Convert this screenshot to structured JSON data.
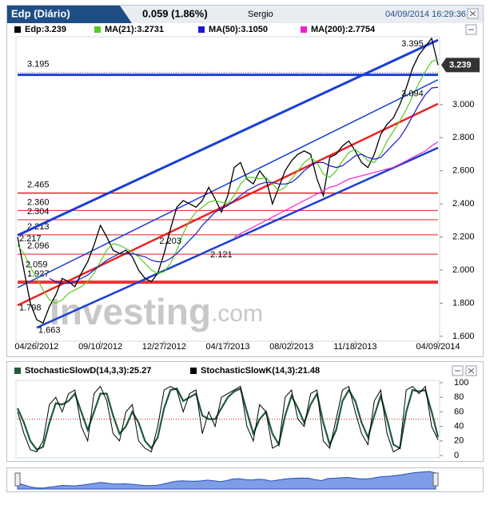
{
  "header": {
    "title": "Edp (Diário)",
    "change": "0.059 (1.86%)",
    "user": "Sergio",
    "datetime": "04/09/2014 16:29:36"
  },
  "watermark": {
    "brand": "Investing",
    "suffix": ".com"
  },
  "chart_data": [
    {
      "type": "line",
      "categories": [
        null,
        null,
        null,
        "04/26/2012",
        null,
        null,
        null,
        null,
        null,
        null,
        null,
        null,
        null,
        "09/10/2012",
        null,
        null,
        null,
        null,
        null,
        null,
        null,
        null,
        null,
        "12/27/2012",
        null,
        null,
        null,
        null,
        null,
        null,
        null,
        null,
        null,
        "04/17/2013",
        null,
        null,
        null,
        null,
        null,
        null,
        null,
        null,
        null,
        "08/02/2013",
        null,
        null,
        null,
        null,
        null,
        null,
        null,
        null,
        null,
        "11/18/2013",
        null,
        null,
        null,
        null,
        null,
        null,
        null,
        null,
        null,
        null,
        null,
        null,
        "04/09/2014"
      ],
      "series": [
        {
          "name": "Edp:3.239",
          "color": "#000000",
          "values": [
            2.2,
            2.0,
            1.8,
            1.7,
            1.68,
            1.78,
            1.85,
            1.95,
            1.93,
            1.9,
            1.98,
            2.05,
            2.15,
            2.27,
            2.2,
            2.12,
            2.1,
            2.12,
            2.08,
            2.0,
            1.95,
            1.93,
            1.98,
            2.1,
            2.25,
            2.38,
            2.42,
            2.4,
            2.38,
            2.42,
            2.5,
            2.43,
            2.35,
            2.45,
            2.62,
            2.65,
            2.55,
            2.52,
            2.6,
            2.55,
            2.4,
            2.5,
            2.6,
            2.66,
            2.7,
            2.72,
            2.7,
            2.55,
            2.45,
            2.68,
            2.7,
            2.75,
            2.78,
            2.72,
            2.65,
            2.62,
            2.7,
            2.82,
            2.88,
            2.92,
            3.0,
            3.1,
            3.22,
            3.3,
            3.35,
            3.4,
            3.239
          ]
        },
        {
          "name": "MA(21):3.2731",
          "color": "#55cc22",
          "values": [
            2.15,
            2.1,
            2.02,
            1.95,
            1.88,
            1.82,
            1.8,
            1.82,
            1.86,
            1.88,
            1.9,
            1.93,
            1.98,
            2.05,
            2.12,
            2.16,
            2.15,
            2.13,
            2.11,
            2.08,
            2.04,
            2.0,
            1.98,
            1.99,
            2.04,
            2.12,
            2.22,
            2.3,
            2.35,
            2.38,
            2.41,
            2.42,
            2.41,
            2.4,
            2.45,
            2.52,
            2.56,
            2.56,
            2.55,
            2.56,
            2.52,
            2.48,
            2.5,
            2.55,
            2.6,
            2.65,
            2.68,
            2.65,
            2.58,
            2.56,
            2.6,
            2.66,
            2.71,
            2.73,
            2.7,
            2.66,
            2.65,
            2.7,
            2.78,
            2.84,
            2.9,
            2.97,
            3.05,
            3.13,
            3.2,
            3.26,
            3.273
          ]
        },
        {
          "name": "MA(50):3.1050",
          "color": "#1a1acc",
          "values": [
            null,
            null,
            null,
            null,
            null,
            1.95,
            1.93,
            1.92,
            1.92,
            1.93,
            1.95,
            1.97,
            2.0,
            2.03,
            2.06,
            2.08,
            2.1,
            2.1,
            2.1,
            2.09,
            2.08,
            2.06,
            2.05,
            2.05,
            2.07,
            2.1,
            2.14,
            2.18,
            2.22,
            2.27,
            2.31,
            2.35,
            2.37,
            2.39,
            2.42,
            2.45,
            2.48,
            2.5,
            2.52,
            2.53,
            2.53,
            2.52,
            2.52,
            2.53,
            2.56,
            2.6,
            2.63,
            2.65,
            2.65,
            2.63,
            2.62,
            2.63,
            2.66,
            2.69,
            2.7,
            2.68,
            2.67,
            2.68,
            2.72,
            2.76,
            2.8,
            2.86,
            2.93,
            3.0,
            3.06,
            3.1,
            3.105
          ]
        },
        {
          "name": "MA(200):2.7754",
          "color": "#ee22cc",
          "values": [
            null,
            null,
            null,
            null,
            null,
            null,
            null,
            null,
            null,
            null,
            null,
            null,
            null,
            null,
            null,
            null,
            null,
            null,
            null,
            null,
            null,
            null,
            null,
            null,
            null,
            null,
            null,
            null,
            null,
            null,
            null,
            null,
            null,
            null,
            2.2,
            2.22,
            2.24,
            2.26,
            2.28,
            2.3,
            2.32,
            2.34,
            2.36,
            2.38,
            2.4,
            2.42,
            2.44,
            2.46,
            2.48,
            2.5,
            2.51,
            2.53,
            2.55,
            2.56,
            2.57,
            2.58,
            2.59,
            2.6,
            2.61,
            2.62,
            2.64,
            2.66,
            2.68,
            2.7,
            2.72,
            2.75,
            2.775
          ]
        }
      ],
      "ylim": [
        1.58,
        3.4
      ],
      "yticks": [
        {
          "value": 1.6,
          "label": "1.600"
        },
        {
          "value": 1.8,
          "label": "1.800"
        },
        {
          "value": 2.0,
          "label": "2.000"
        },
        {
          "value": 2.2,
          "label": "2.200"
        },
        {
          "value": 2.4,
          "label": "2.400"
        },
        {
          "value": 2.6,
          "label": "2.600"
        },
        {
          "value": 2.8,
          "label": "2.800"
        },
        {
          "value": 3.0,
          "label": "3.000"
        }
      ],
      "last_value": 3.239,
      "levels": [
        {
          "value": 3.195,
          "label": "3.195",
          "color": "#777777",
          "width": 1,
          "dash": true
        },
        {
          "value": 2.465,
          "label": "2.465",
          "color": "#dd2222",
          "width": 1.5
        },
        {
          "value": 2.36,
          "label": "2.360",
          "color": "#dd2222",
          "width": 1
        },
        {
          "value": 2.304,
          "label": "2.304",
          "color": "#dd2222",
          "width": 1
        },
        {
          "value": 2.213,
          "label": "2.213",
          "color": "#dd2222",
          "width": 1
        },
        {
          "value": 2.096,
          "label": "2.096",
          "color": "#dd2222",
          "width": 1
        },
        {
          "value": 1.927,
          "label": "1.927",
          "color": "#ee3333",
          "width": 4
        }
      ],
      "hlines": [
        {
          "value": 3.18,
          "color": "#1a3fd6",
          "width": 3
        }
      ],
      "annotations": [
        {
          "x": 0,
          "value": 2.217,
          "label": "2.217"
        },
        {
          "x": 22,
          "value": 2.203,
          "label": "2.203"
        },
        {
          "x": 30,
          "value": 2.121,
          "label": "2.121"
        },
        {
          "x": 1,
          "value": 2.059,
          "label": "2.059"
        },
        {
          "x": 0,
          "value": 1.798,
          "label": "1.798"
        },
        {
          "x": 3,
          "value": 1.663,
          "label": "1.663"
        },
        {
          "x": 60,
          "value": 3.094,
          "label": "3.094"
        },
        {
          "x": 60,
          "value": 3.395,
          "label": "3.395"
        }
      ],
      "trendlines": [
        {
          "from": [
            0,
            2.21
          ],
          "to": [
            66,
            3.39
          ],
          "color": "#1a3fd6",
          "width": 3
        },
        {
          "from": [
            0,
            1.894
          ],
          "to": [
            66,
            3.15
          ],
          "color": "#1a3fd6",
          "width": 1.5
        },
        {
          "from": [
            0,
            1.787
          ],
          "to": [
            66,
            3.005
          ],
          "color": "#ee2222",
          "width": 2.5
        },
        {
          "from": [
            3,
            1.652
          ],
          "to": [
            66,
            2.739
          ],
          "color": "#1a3fd6",
          "width": 2.5
        }
      ]
    },
    {
      "type": "line",
      "series": [
        {
          "name": "StochasticSlowD(14,3,3):25.27",
          "color": "#1f5c3a",
          "values": [
            65,
            45,
            20,
            8,
            12,
            45,
            72,
            70,
            75,
            85,
            60,
            35,
            60,
            85,
            85,
            55,
            30,
            40,
            60,
            45,
            20,
            10,
            25,
            65,
            90,
            92,
            75,
            80,
            85,
            55,
            50,
            50,
            65,
            80,
            88,
            92,
            60,
            30,
            50,
            60,
            30,
            15,
            55,
            82,
            65,
            45,
            70,
            85,
            45,
            15,
            35,
            75,
            90,
            75,
            45,
            25,
            55,
            82,
            50,
            15,
            10,
            60,
            90,
            88,
            90,
            60,
            25.27
          ]
        },
        {
          "name": "StochasticSlowK(14,3):21.48",
          "color": "#000000",
          "values": [
            60,
            30,
            8,
            5,
            20,
            70,
            80,
            60,
            85,
            90,
            40,
            20,
            85,
            95,
            75,
            30,
            20,
            60,
            70,
            20,
            10,
            5,
            40,
            90,
            95,
            90,
            60,
            85,
            90,
            30,
            60,
            40,
            80,
            85,
            90,
            95,
            40,
            20,
            70,
            60,
            10,
            15,
            80,
            90,
            50,
            40,
            85,
            90,
            20,
            10,
            50,
            90,
            95,
            60,
            30,
            15,
            75,
            90,
            30,
            5,
            10,
            90,
            95,
            85,
            95,
            40,
            21.48
          ]
        }
      ],
      "ylim": [
        0,
        100
      ],
      "yticks": [
        0,
        20,
        40,
        60,
        80,
        100
      ],
      "reference_lines": [
        {
          "value": 50,
          "color": "#cc2222"
        }
      ]
    }
  ]
}
